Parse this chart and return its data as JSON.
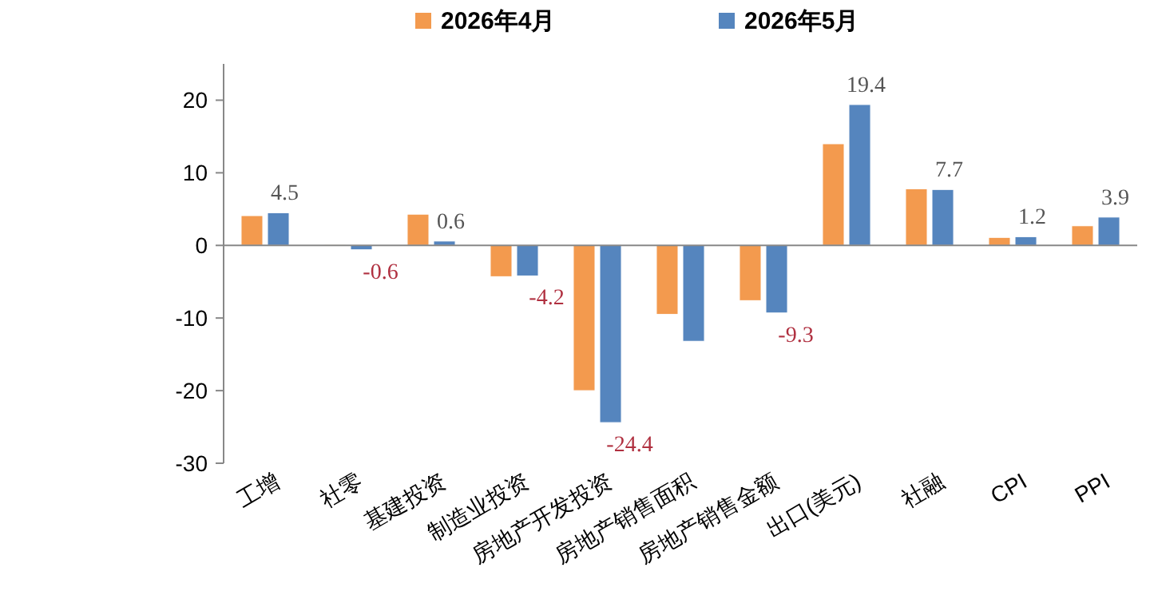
{
  "chart_data": {
    "type": "bar",
    "categories": [
      "工增",
      "社零",
      "基建投资",
      "制造业投资",
      "房地产开发投资",
      "房地产销售面积",
      "房地产销售金额",
      "出口(美元)",
      "社融",
      "CPI",
      "PPI"
    ],
    "series": [
      {
        "name": "2026年4月",
        "color": "#f39a4e",
        "values": [
          4.1,
          0.1,
          4.3,
          -4.3,
          -20.0,
          -9.5,
          -7.6,
          14.0,
          7.8,
          1.1,
          2.7
        ]
      },
      {
        "name": "2026年5月",
        "color": "#5585be",
        "values": [
          4.5,
          -0.6,
          0.6,
          -4.2,
          -24.4,
          -13.2,
          -9.3,
          19.4,
          7.7,
          1.2,
          3.9
        ],
        "value_labels": [
          "4.5",
          "-0.6",
          "0.6",
          "-4.2",
          "-24.4",
          null,
          "-9.3",
          "19.4",
          "7.7",
          "1.2",
          "3.9"
        ]
      }
    ],
    "ylim": [
      -30,
      25
    ],
    "yticks": [
      -30,
      -20,
      -10,
      0,
      10,
      20
    ],
    "legend": "top"
  }
}
